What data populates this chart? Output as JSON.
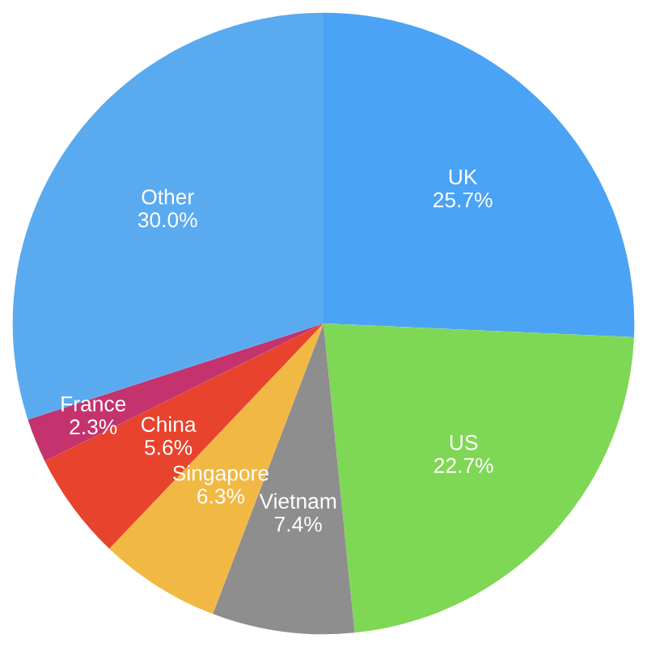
{
  "chart_data": {
    "type": "pie",
    "categories": [
      "UK",
      "US",
      "Vietnam",
      "Singapore",
      "China",
      "France",
      "Other"
    ],
    "values": [
      25.7,
      22.7,
      7.4,
      6.3,
      5.6,
      2.3,
      30.0
    ],
    "colors": [
      "#4aa3f5",
      "#7fd756",
      "#8e8e8e",
      "#f2b844",
      "#e8432d",
      "#c4336d",
      "#5aaaf0"
    ],
    "value_labels": [
      "25.7%",
      "22.7%",
      "7.4%",
      "6.3%",
      "5.6%",
      "2.3%",
      "30.0%"
    ],
    "legend": false
  }
}
